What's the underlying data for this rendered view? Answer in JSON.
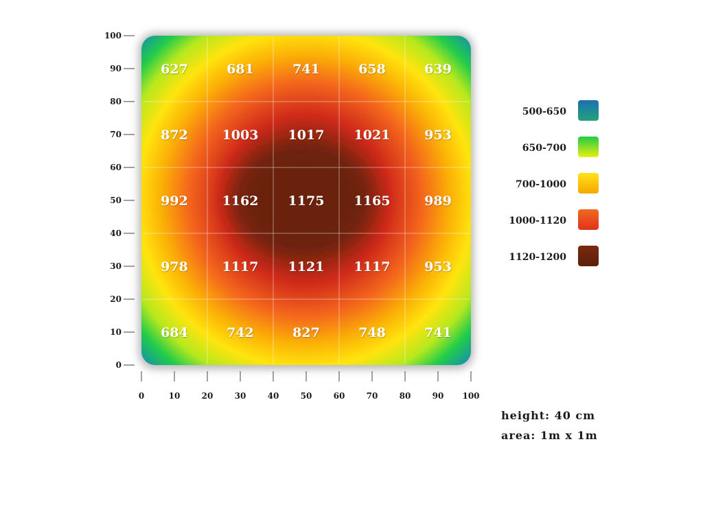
{
  "chart_data": {
    "type": "heatmap",
    "x_ticks": [
      "0",
      "10",
      "20",
      "30",
      "40",
      "50",
      "60",
      "70",
      "80",
      "90",
      "100"
    ],
    "y_ticks": [
      "0",
      "10",
      "20",
      "30",
      "40",
      "50",
      "60",
      "70",
      "80",
      "90",
      "100"
    ],
    "xlim": [
      0,
      100
    ],
    "ylim": [
      0,
      100
    ],
    "grid": true,
    "cells": [
      {
        "x": 10,
        "y": 90,
        "value": "627"
      },
      {
        "x": 30,
        "y": 90,
        "value": "681"
      },
      {
        "x": 50,
        "y": 90,
        "value": "741"
      },
      {
        "x": 70,
        "y": 90,
        "value": "658"
      },
      {
        "x": 90,
        "y": 90,
        "value": "639"
      },
      {
        "x": 10,
        "y": 70,
        "value": "872"
      },
      {
        "x": 30,
        "y": 70,
        "value": "1003"
      },
      {
        "x": 50,
        "y": 70,
        "value": "1017"
      },
      {
        "x": 70,
        "y": 70,
        "value": "1021"
      },
      {
        "x": 90,
        "y": 70,
        "value": "953"
      },
      {
        "x": 10,
        "y": 50,
        "value": "992"
      },
      {
        "x": 30,
        "y": 50,
        "value": "1162"
      },
      {
        "x": 50,
        "y": 50,
        "value": "1175"
      },
      {
        "x": 70,
        "y": 50,
        "value": "1165"
      },
      {
        "x": 90,
        "y": 50,
        "value": "989"
      },
      {
        "x": 10,
        "y": 30,
        "value": "978"
      },
      {
        "x": 30,
        "y": 30,
        "value": "1117"
      },
      {
        "x": 50,
        "y": 30,
        "value": "1121"
      },
      {
        "x": 70,
        "y": 30,
        "value": "1117"
      },
      {
        "x": 90,
        "y": 30,
        "value": "953"
      },
      {
        "x": 10,
        "y": 10,
        "value": "684"
      },
      {
        "x": 30,
        "y": 10,
        "value": "742"
      },
      {
        "x": 50,
        "y": 10,
        "value": "827"
      },
      {
        "x": 70,
        "y": 10,
        "value": "748"
      },
      {
        "x": 90,
        "y": 10,
        "value": "741"
      }
    ],
    "legend_position": "right",
    "legend": [
      {
        "label": "500-650",
        "color_top": "#1e6fb0",
        "color_bottom": "#22a37a"
      },
      {
        "label": "650-700",
        "color_top": "#22cc44",
        "color_bottom": "#e8ee10"
      },
      {
        "label": "700-1000",
        "color_top": "#ffe21a",
        "color_bottom": "#f5a800"
      },
      {
        "label": "1000-1120",
        "color_top": "#f06a20",
        "color_bottom": "#e0321c"
      },
      {
        "label": "1120-1200",
        "color_top": "#7a2a10",
        "color_bottom": "#5c1e0a"
      }
    ]
  },
  "notes": {
    "height": "height: 40 cm",
    "area": "area: 1m x 1m"
  }
}
